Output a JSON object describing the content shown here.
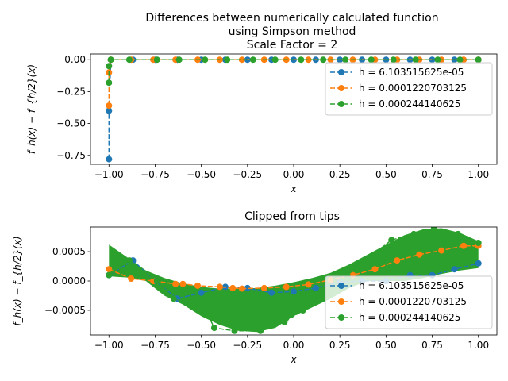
{
  "figure": {
    "title_lines": [
      "Differences between numerically calculated function",
      "using Simpson method",
      "Scale Factor = 2"
    ]
  },
  "colors": {
    "blue": "#1f77b4",
    "orange": "#ff7f0e",
    "green": "#2ca02c"
  },
  "chart_data": [
    {
      "type": "line",
      "title": "",
      "xlabel": "x",
      "ylabel": "f_h(x) − f_{h/2}(x)",
      "xlim": [
        -1.1,
        1.1
      ],
      "ylim": [
        -0.82,
        0.045
      ],
      "xticks": [
        "−1.00",
        "−0.75",
        "−0.50",
        "−0.25",
        "0.00",
        "0.25",
        "0.50",
        "0.75",
        "1.00"
      ],
      "xtick_values": [
        -1.0,
        -0.75,
        -0.5,
        -0.25,
        0.0,
        0.25,
        0.5,
        0.75,
        1.0
      ],
      "yticks": [
        "0.00",
        "−0.25",
        "−0.50",
        "−0.75"
      ],
      "ytick_values": [
        0.0,
        -0.25,
        -0.5,
        -0.75
      ],
      "legend": "upper right",
      "series": [
        {
          "name": "h = 6.103515625e-05",
          "color": "blue",
          "x": [
            -1.0,
            -1.0,
            -0.99,
            -0.87,
            -0.75,
            -0.63,
            -0.5,
            -0.37,
            -0.25,
            -0.12,
            0.0,
            0.12,
            0.25,
            0.37,
            0.5,
            0.63,
            0.75,
            0.87,
            1.0
          ],
          "y": [
            -0.78,
            -0.4,
            0.0,
            0.0,
            0.0,
            0.0,
            0.0,
            0.0,
            0.0,
            0.0,
            0.0,
            0.0,
            0.0,
            0.0,
            0.0,
            0.0,
            0.0,
            0.0,
            0.0
          ]
        },
        {
          "name": "h = 0.0001220703125",
          "color": "orange",
          "x": [
            -1.0,
            -1.0,
            -0.99,
            -0.88,
            -0.76,
            -0.64,
            -0.52,
            -0.4,
            -0.28,
            -0.16,
            -0.04,
            0.08,
            0.2,
            0.32,
            0.44,
            0.56,
            0.68,
            0.8,
            0.92,
            1.0
          ],
          "y": [
            -0.36,
            -0.1,
            0.0,
            0.0,
            0.0,
            0.0,
            0.0,
            0.0,
            0.0,
            0.0,
            0.0,
            0.0,
            0.0,
            0.0,
            0.0,
            0.0,
            0.0,
            0.0,
            0.0,
            0.0
          ]
        },
        {
          "name": "h = 0.000244140625",
          "color": "green",
          "x": [
            -1.0,
            -1.0,
            -0.99,
            -0.89,
            -0.74,
            -0.62,
            -0.48,
            -0.36,
            -0.22,
            -0.1,
            0.04,
            0.16,
            0.28,
            0.42,
            0.54,
            0.66,
            0.78,
            0.9,
            1.0
          ],
          "y": [
            -0.18,
            -0.05,
            0.0,
            0.0,
            0.0,
            0.0,
            0.0,
            0.0,
            0.0,
            0.0,
            0.0,
            0.0,
            0.0,
            0.0,
            0.0,
            0.0,
            0.0,
            0.0,
            0.0
          ]
        }
      ]
    },
    {
      "type": "line",
      "title": "Clipped from tips",
      "xlabel": "x",
      "ylabel": "f_h(x) − f_{h/2}(x)",
      "xlim": [
        -1.1,
        1.1
      ],
      "ylim": [
        -0.00092,
        0.00092
      ],
      "xticks": [
        "−1.00",
        "−0.75",
        "−0.50",
        "−0.25",
        "0.00",
        "0.25",
        "0.50",
        "0.75",
        "1.00"
      ],
      "xtick_values": [
        -1.0,
        -0.75,
        -0.5,
        -0.25,
        0.0,
        0.25,
        0.5,
        0.75,
        1.0
      ],
      "yticks": [
        "0.0005",
        "0.0000",
        "−0.0005"
      ],
      "ytick_values": [
        0.0005,
        0.0,
        -0.0005
      ],
      "legend": "lower right",
      "band": {
        "description_free": true,
        "x": [
          -1.0,
          -0.9,
          -0.8,
          -0.7,
          -0.6,
          -0.5,
          -0.4,
          -0.3,
          -0.2,
          -0.1,
          0.0,
          0.1,
          0.2,
          0.3,
          0.4,
          0.5,
          0.6,
          0.7,
          0.8,
          0.9,
          1.0
        ],
        "upper": [
          0.00062,
          0.0004,
          0.00018,
          5e-05,
          -4e-05,
          -0.0001,
          -0.00013,
          -0.00013,
          -0.00012,
          -8e-05,
          -2e-05,
          5e-05,
          0.00014,
          0.00028,
          0.00045,
          0.00062,
          0.00078,
          0.00088,
          0.0009,
          0.00082,
          0.00068
        ],
        "lower": [
          8e-05,
          6e-05,
          0.0,
          -0.00025,
          -0.0004,
          -0.0006,
          -0.00075,
          -0.00085,
          -0.00087,
          -0.0008,
          -0.0006,
          -0.00045,
          -0.0003,
          -0.00012,
          0.0,
          0.0,
          0.0,
          5e-05,
          0.00012,
          0.00018,
          0.00022
        ]
      },
      "series": [
        {
          "name": "h = 6.103515625e-05",
          "color": "blue",
          "x": [
            -1.0,
            -0.87,
            -0.75,
            -0.63,
            -0.5,
            -0.37,
            -0.25,
            -0.12,
            0.0,
            0.12,
            0.25,
            0.37,
            0.5,
            0.63,
            0.75,
            0.87,
            1.0
          ],
          "y": [
            0.0001,
            0.00035,
            0.0,
            -0.0003,
            -0.0002,
            -0.0001,
            -0.00012,
            -0.0002,
            -0.00018,
            -0.00012,
            -2e-05,
            0.0,
            0.0,
            0.0001,
            0.0001,
            0.0002,
            0.0003
          ]
        },
        {
          "name": "h = 0.0001220703125",
          "color": "orange",
          "x": [
            -1.0,
            -0.88,
            -0.76,
            -0.64,
            -0.6,
            -0.52,
            -0.4,
            -0.33,
            -0.28,
            -0.16,
            -0.04,
            0.08,
            0.2,
            0.32,
            0.44,
            0.56,
            0.68,
            0.8,
            0.92,
            1.0
          ],
          "y": [
            0.0002,
            4e-05,
            0.0,
            -5e-05,
            -5e-05,
            -8e-05,
            -0.0001,
            -0.00012,
            -0.00013,
            -0.00012,
            -0.0001,
            -6e-05,
            2e-05,
            0.0001,
            0.0002,
            0.00035,
            0.00045,
            0.00052,
            0.0006,
            0.0006
          ]
        },
        {
          "name": "h = 0.000244140625",
          "color": "green",
          "x": [
            -1.0,
            -0.89,
            -0.74,
            -0.65,
            -0.54,
            -0.46,
            -0.43,
            -0.32,
            -0.18,
            -0.05,
            0.05,
            0.17,
            0.29,
            0.41,
            0.53,
            0.65,
            0.76,
            0.89,
            1.0
          ],
          "y": [
            0.0001,
            0.00035,
            0.0,
            -0.0003,
            -0.0004,
            -0.0006,
            -0.0008,
            -0.00085,
            -0.00085,
            -0.0007,
            -0.0005,
            -0.0002,
            0.0001,
            0.0004,
            0.0007,
            0.0008,
            0.0009,
            0.0008,
            0.00065
          ]
        }
      ]
    }
  ]
}
